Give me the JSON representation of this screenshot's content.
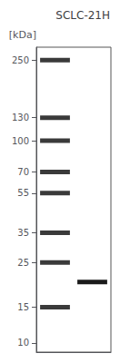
{
  "chart_data": {
    "type": "band",
    "title": "SCLC-21H",
    "ylabel": "[kDa]",
    "series": [
      {
        "color": "#3a3a3a",
        "values": [
          250,
          130,
          100,
          70,
          55,
          35,
          25,
          15
        ]
      },
      {
        "color": "#1a1a1a",
        "values": [
          20
        ]
      }
    ],
    "log": "y",
    "ylim": [
      9.0,
      290.0
    ],
    "yticks": [
      250,
      130,
      100,
      70,
      55,
      35,
      25,
      15,
      10
    ],
    "grid": false,
    "tick_labels": "y"
  }
}
